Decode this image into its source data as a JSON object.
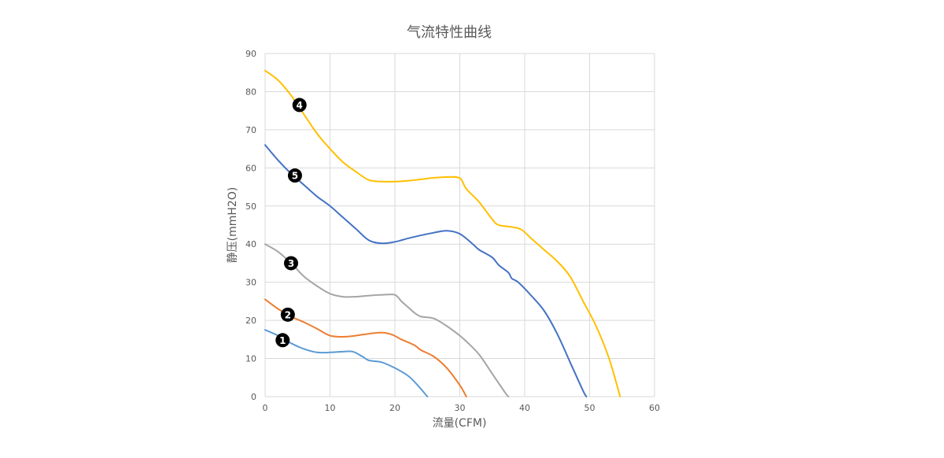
{
  "chart_data": {
    "type": "line",
    "title": "气流特性曲线",
    "xlabel": "流量(CFM)",
    "ylabel": "静压(mmH2O)",
    "xlim": [
      0,
      60
    ],
    "ylim": [
      0,
      90
    ],
    "xticks": [
      0,
      10,
      20,
      30,
      40,
      50,
      60
    ],
    "yticks": [
      0,
      10,
      20,
      30,
      40,
      50,
      60,
      70,
      80,
      90
    ],
    "grid": true,
    "legend": "none",
    "series": [
      {
        "marker": "1",
        "color": "#5B9BD5",
        "points": [
          [
            0,
            17.5
          ],
          [
            2,
            16
          ],
          [
            4,
            14
          ],
          [
            6,
            12.5
          ],
          [
            8,
            11.6
          ],
          [
            10,
            11.6
          ],
          [
            12,
            11.8
          ],
          [
            13.5,
            11.8
          ],
          [
            15,
            10.5
          ],
          [
            16,
            9.5
          ],
          [
            18,
            9
          ],
          [
            20,
            7.5
          ],
          [
            22,
            5.5
          ],
          [
            23.5,
            3
          ],
          [
            25,
            0
          ]
        ]
      },
      {
        "marker": "2",
        "color": "#ED7D31",
        "points": [
          [
            0,
            25.5
          ],
          [
            2,
            23
          ],
          [
            4,
            21
          ],
          [
            6,
            19.5
          ],
          [
            8,
            17.8
          ],
          [
            10,
            16
          ],
          [
            12,
            15.7
          ],
          [
            14,
            16
          ],
          [
            16,
            16.5
          ],
          [
            18,
            16.8
          ],
          [
            19.5,
            16.3
          ],
          [
            21,
            15
          ],
          [
            23,
            13.5
          ],
          [
            24,
            12.2
          ],
          [
            26,
            10.5
          ],
          [
            28,
            7.5
          ],
          [
            30,
            3
          ],
          [
            31,
            0
          ]
        ]
      },
      {
        "marker": "3",
        "color": "#A5A5A5",
        "points": [
          [
            0,
            40
          ],
          [
            2,
            38
          ],
          [
            4,
            35
          ],
          [
            6,
            31.5
          ],
          [
            8,
            29
          ],
          [
            10,
            27
          ],
          [
            12,
            26.2
          ],
          [
            14,
            26.2
          ],
          [
            16,
            26.5
          ],
          [
            18,
            26.7
          ],
          [
            20,
            26.7
          ],
          [
            21,
            25
          ],
          [
            22,
            23.5
          ],
          [
            23,
            22
          ],
          [
            24,
            21
          ],
          [
            26,
            20.5
          ],
          [
            28,
            18.5
          ],
          [
            30,
            16
          ],
          [
            31,
            14.5
          ],
          [
            33,
            11
          ],
          [
            35,
            6
          ],
          [
            37,
            1
          ],
          [
            37.5,
            0
          ]
        ]
      },
      {
        "marker": "4",
        "color": "#FFC000",
        "points": [
          [
            0,
            85.5
          ],
          [
            2,
            83
          ],
          [
            4,
            79
          ],
          [
            6,
            74
          ],
          [
            8,
            69
          ],
          [
            10,
            65
          ],
          [
            12,
            61.5
          ],
          [
            14,
            59
          ],
          [
            16,
            56.8
          ],
          [
            18,
            56.4
          ],
          [
            20,
            56.4
          ],
          [
            22,
            56.6
          ],
          [
            24,
            57
          ],
          [
            26,
            57.4
          ],
          [
            28,
            57.6
          ],
          [
            30,
            57.3
          ],
          [
            31,
            54.5
          ],
          [
            33,
            51
          ],
          [
            35,
            46.5
          ],
          [
            36,
            45
          ],
          [
            38,
            44.5
          ],
          [
            39.5,
            43.8
          ],
          [
            41,
            41.5
          ],
          [
            43,
            38.5
          ],
          [
            45,
            35.5
          ],
          [
            47,
            31.5
          ],
          [
            49,
            25
          ],
          [
            51,
            18.5
          ],
          [
            53,
            10
          ],
          [
            54.7,
            0
          ]
        ]
      },
      {
        "marker": "5",
        "color": "#4472C4",
        "points": [
          [
            0,
            66
          ],
          [
            2,
            62
          ],
          [
            4,
            58.5
          ],
          [
            6,
            55.5
          ],
          [
            8,
            52.5
          ],
          [
            10,
            50
          ],
          [
            12,
            47
          ],
          [
            14,
            44
          ],
          [
            16,
            41
          ],
          [
            18,
            40.2
          ],
          [
            20,
            40.6
          ],
          [
            22,
            41.5
          ],
          [
            24,
            42.3
          ],
          [
            26,
            43
          ],
          [
            28,
            43.5
          ],
          [
            30,
            42.7
          ],
          [
            32,
            40
          ],
          [
            33,
            38.5
          ],
          [
            35,
            36.5
          ],
          [
            36,
            34.5
          ],
          [
            37.5,
            32.5
          ],
          [
            38,
            31
          ],
          [
            39,
            30
          ],
          [
            41,
            26.5
          ],
          [
            43,
            22.5
          ],
          [
            45,
            16.5
          ],
          [
            47,
            9
          ],
          [
            49,
            1.5
          ],
          [
            49.5,
            0
          ]
        ]
      }
    ],
    "annotations": [
      {
        "label": "1",
        "x": 2.7,
        "y": 14.8
      },
      {
        "label": "2",
        "x": 3.5,
        "y": 21.5
      },
      {
        "label": "3",
        "x": 4.0,
        "y": 35.0
      },
      {
        "label": "4",
        "x": 5.3,
        "y": 76.5
      },
      {
        "label": "5",
        "x": 4.6,
        "y": 58.0
      }
    ]
  }
}
